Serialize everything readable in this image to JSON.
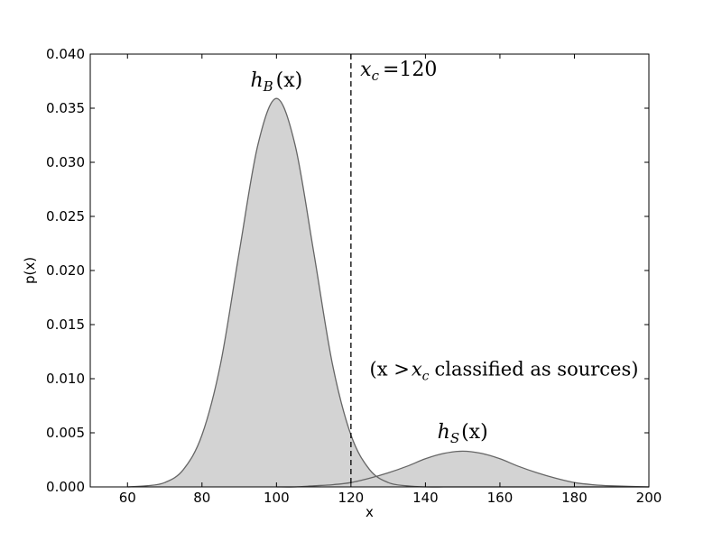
{
  "chart_data": {
    "type": "area",
    "xlabel": "x",
    "ylabel": "p(x)",
    "xlim": [
      50,
      200
    ],
    "ylim": [
      0,
      0.04
    ],
    "x_ticks": [
      60,
      80,
      100,
      120,
      140,
      160,
      180,
      200
    ],
    "y_ticks": [
      0.0,
      0.005,
      0.01,
      0.015,
      0.02,
      0.025,
      0.03,
      0.035,
      0.04
    ],
    "y_tick_labels": [
      "0.000",
      "0.005",
      "0.010",
      "0.015",
      "0.020",
      "0.025",
      "0.030",
      "0.035",
      "0.040"
    ],
    "grid": false,
    "fill_color": "#d3d3d3",
    "line_color": "#666666",
    "series": [
      {
        "label": "h_B(x)",
        "x": [
          60,
          65,
          70,
          75,
          80,
          85,
          90,
          95,
          100,
          105,
          110,
          115,
          120,
          125,
          130,
          135,
          140,
          145,
          150,
          155,
          160,
          165,
          170,
          180,
          190,
          200
        ],
        "y": [
          0.0,
          0.0001,
          0.0004,
          0.0016,
          0.0048,
          0.0114,
          0.0217,
          0.0316,
          0.0359,
          0.0316,
          0.0217,
          0.0114,
          0.0048,
          0.0016,
          0.0004,
          0.0001,
          0.0,
          0.0,
          0.0,
          0.0,
          0.0,
          0.0,
          0.0,
          0.0,
          0.0,
          0.0
        ]
      },
      {
        "label": "h_S(x)",
        "x": [
          100,
          105,
          110,
          115,
          120,
          125,
          130,
          135,
          140,
          145,
          150,
          155,
          160,
          165,
          170,
          175,
          180,
          185,
          190,
          200
        ],
        "y": [
          0.0,
          0.0,
          0.0001,
          0.0002,
          0.0004,
          0.0008,
          0.0013,
          0.0019,
          0.0026,
          0.0031,
          0.0033,
          0.0031,
          0.0026,
          0.0019,
          0.0013,
          0.0008,
          0.0004,
          0.0002,
          0.0001,
          0.0
        ]
      }
    ],
    "cutoff": {
      "x": 120,
      "style": "dashed"
    },
    "annotations": [
      {
        "at": [
          100,
          0.037
        ],
        "base": "h",
        "sub": "B",
        "rest": "(x)"
      },
      {
        "at": [
          150,
          0.0045
        ],
        "base": "h",
        "sub": "S",
        "rest": "(x)"
      },
      {
        "at": [
          122.5,
          0.038
        ],
        "base": "x",
        "sub": "c",
        "rest": "=120"
      },
      {
        "at": [
          125,
          0.0103
        ],
        "pre": "(x >",
        "base": "x",
        "sub": "c",
        "rest": "classified as sources)"
      }
    ]
  }
}
